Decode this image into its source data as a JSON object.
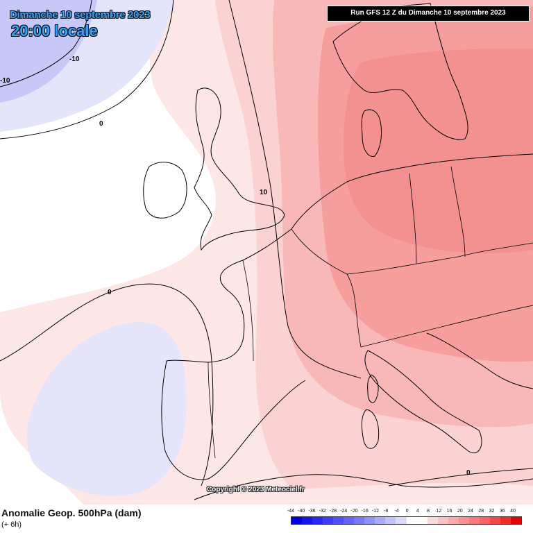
{
  "header": {
    "date": "Dimanche 10 septembre 2023",
    "time": "20:00 locale",
    "run": "Run GFS 12 Z du Dimanche 10 septembre 2023"
  },
  "copyright": "Copyright © 2023 Meteociel.fr",
  "footer": {
    "title": "Anomalie Geop. 500hPa (dam)",
    "subtitle": "(+ 6h)"
  },
  "contour_labels": [
    "-10",
    "-10",
    "0",
    "0",
    "10",
    "0"
  ],
  "legend": {
    "values": [
      "-44",
      "-40",
      "-36",
      "-32",
      "-28",
      "-24",
      "-20",
      "-16",
      "-12",
      "-8",
      "-4",
      "0",
      "4",
      "8",
      "12",
      "16",
      "20",
      "24",
      "28",
      "32",
      "36",
      "40"
    ],
    "colors": [
      "#0000e6",
      "#1414f0",
      "#2828f5",
      "#3c3cf8",
      "#5050fa",
      "#6464fa",
      "#7878fa",
      "#9191fa",
      "#aaaafa",
      "#c3c3fa",
      "#dcdcfa",
      "#ffffff",
      "#ffffff",
      "#fadcdc",
      "#fac3c3",
      "#faaaaa",
      "#fa9191",
      "#fa7878",
      "#fa6464",
      "#fa4646",
      "#f52828",
      "#e60000"
    ]
  },
  "colors": {
    "neg1": "#e4e4fb",
    "neg2": "#c8c8f8",
    "pos1": "#fde6e6",
    "pos2": "#fbcccc",
    "pos3": "#f9b3b3",
    "pos4": "#f69a9a",
    "title_blue": "#2ea3ff"
  }
}
